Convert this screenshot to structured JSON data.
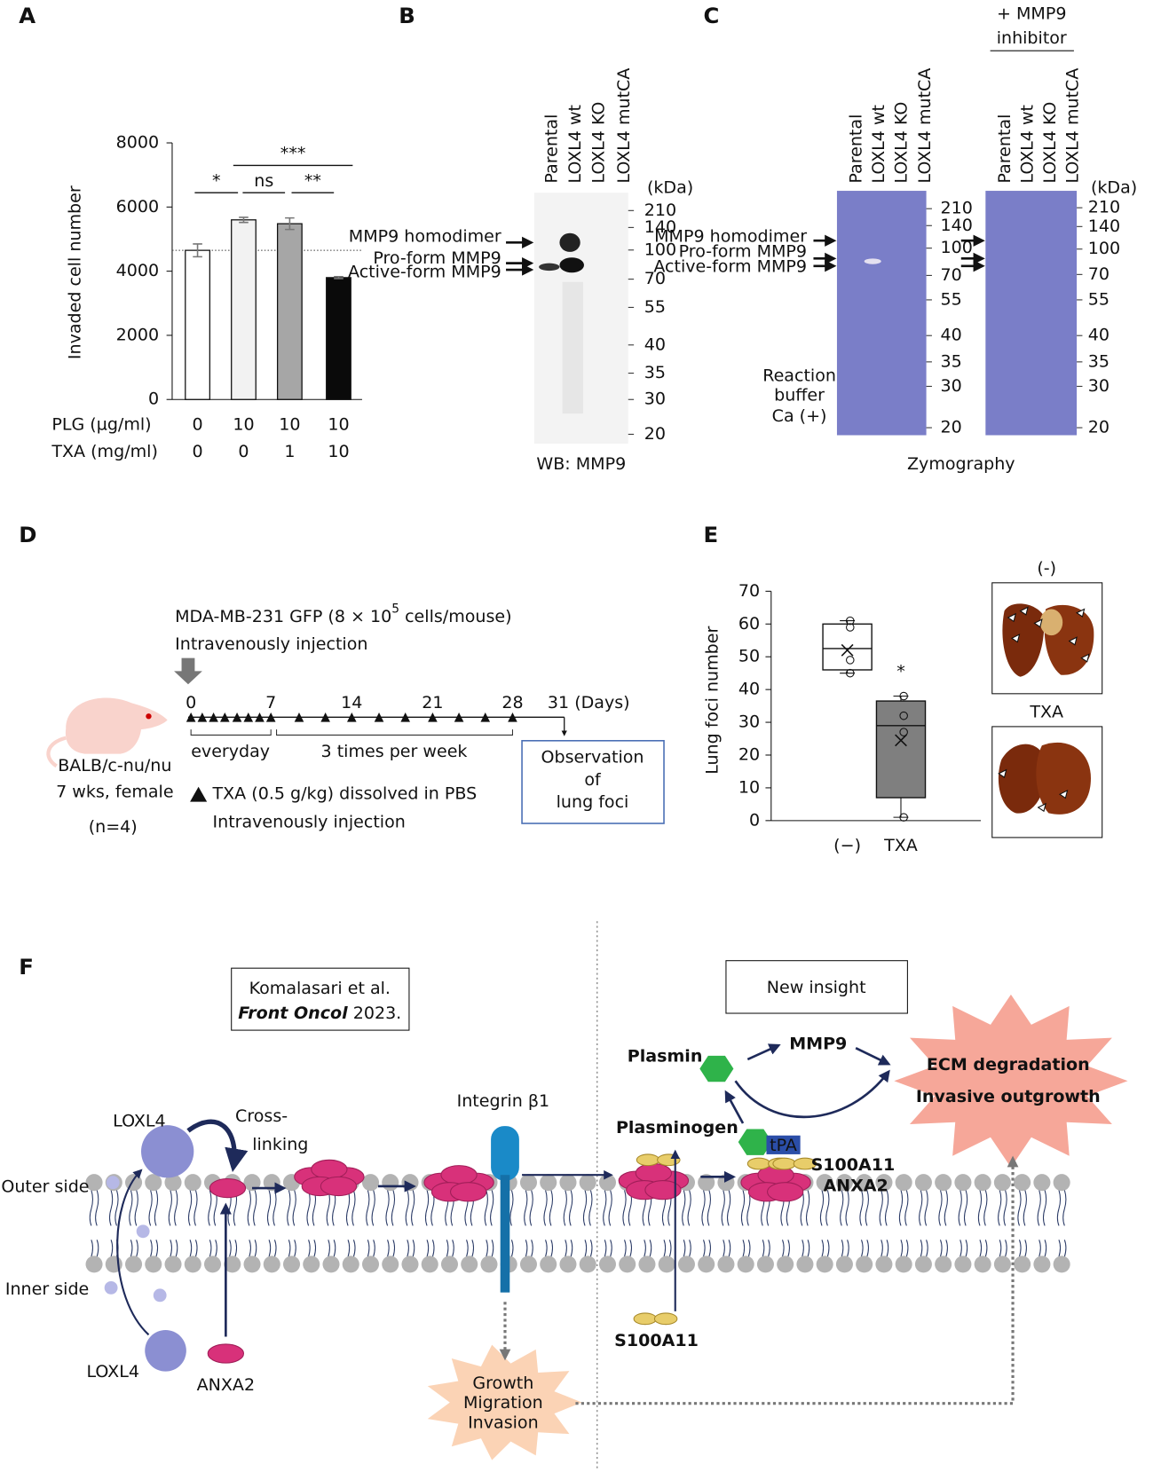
{
  "panels": {
    "labels": [
      "A",
      "B",
      "C",
      "D",
      "E",
      "F"
    ]
  },
  "chart_data": [
    {
      "type": "bar",
      "y_label": "Invaded cell number",
      "values": [
        4650,
        5600,
        5480,
        3800
      ],
      "errors": [
        200,
        80,
        180,
        30
      ],
      "colors": [
        "#ffffff",
        "#f2f2f2",
        "#a6a6a6",
        "#0a0a0a"
      ],
      "ylim": [
        0,
        8000
      ],
      "yticks": [
        0,
        2000,
        4000,
        6000,
        8000
      ],
      "significance": [
        "*",
        "ns",
        "**",
        "***"
      ],
      "conditions": [
        {
          "label": "PLG (µg/ml)",
          "values": [
            0,
            10,
            10,
            10
          ]
        },
        {
          "label": "TXA (mg/ml)",
          "values": [
            0,
            0,
            1,
            10
          ]
        }
      ]
    },
    {
      "type": "box",
      "y_label": "Lung foci number",
      "categories": [
        "(−)",
        "TXA"
      ],
      "boxes": [
        {
          "min": 45,
          "q1": 46,
          "median": 52.5,
          "q3": 60,
          "max": 61,
          "mean": 52
        },
        {
          "min": 1,
          "q1": 7,
          "median": 29,
          "q3": 36.5,
          "max": 38,
          "mean": 24.5
        }
      ],
      "points": [
        [
          61,
          59,
          49,
          45
        ],
        [
          38,
          32,
          27,
          1
        ]
      ],
      "ylim": [
        0,
        70
      ],
      "yticks": [
        0,
        10,
        20,
        30,
        40,
        50,
        60,
        70
      ],
      "annotations": [
        "",
        "*"
      ],
      "photo_labels": [
        "(-)",
        "TXA"
      ]
    }
  ],
  "blot": {
    "lanes": [
      "Parental",
      "LOXL4 wt",
      "LOXL4 KO",
      "LOXL4 mutCA"
    ],
    "unit": "(kDa)",
    "markers": [
      210,
      140,
      100,
      70,
      55,
      40,
      35,
      30,
      20
    ],
    "bands": [
      "MMP9 homodimer",
      "Pro-form MMP9",
      "Active-form MMP9"
    ],
    "caption": "WB: MMP9"
  },
  "zymo": {
    "lanes": [
      "Parental",
      "LOXL4 wt",
      "LOXL4 KO",
      "LOXL4 mutCA"
    ],
    "unit": "(kDa)",
    "markers": [
      210,
      140,
      100,
      70,
      55,
      40,
      35,
      30,
      20
    ],
    "bands": [
      "MMP9 homodimer",
      "Pro-form MMP9",
      "Active-form MMP9"
    ],
    "inhibitor": [
      "+ MMP9",
      "inhibitor"
    ],
    "buffer": [
      "Reaction",
      "buffer",
      "Ca (+)"
    ],
    "caption": "Zymography"
  },
  "timeline": {
    "cells": [
      "MDA-MB-231 GFP (8 × 10",
      "5",
      " cells/mouse)"
    ],
    "injection": "Intravenously injection",
    "days": [
      "0",
      "7",
      "14",
      "21",
      "28",
      "31 (Days)"
    ],
    "everyday": "everyday",
    "weekly": "3 times per week",
    "mouse": [
      "BALB/c-nu/nu",
      "7 wks, female",
      "(n=4)"
    ],
    "treatment": [
      "TXA (0.5 g/kg) dissolved in PBS",
      "Intravenously injection"
    ],
    "observation": [
      "Observation",
      "of",
      "lung foci"
    ]
  },
  "model": {
    "citation": [
      "Komalasari et al.",
      "Front Oncol",
      " 2023."
    ],
    "insight": "New insight",
    "plasmin": "Plasmin",
    "mmp9": "MMP9",
    "ecm": [
      "ECM degradation",
      "Invasive outgrowth"
    ],
    "plasminogen": "Plasminogen",
    "tpa": "tPA",
    "s100a11": "S100A11",
    "anxa2": "ANXA2",
    "loxl4": "LOXL4",
    "crosslinking": [
      "Cross-",
      "linking"
    ],
    "integrin": "Integrin β1",
    "outer": "Outer side",
    "inner": "Inner side",
    "loxl4_inner": "LOXL4",
    "anxa2_inner": "ANXA2",
    "s100a11_inner": "S100A11",
    "outcome": [
      "Growth",
      "Migration",
      "Invasion"
    ]
  }
}
